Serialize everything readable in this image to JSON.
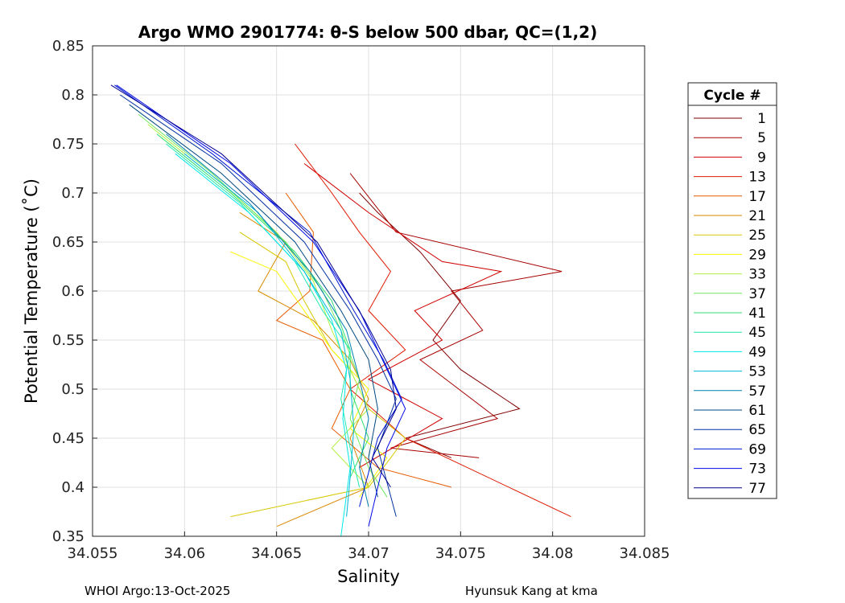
{
  "chart_data": {
    "type": "line",
    "title": "Argo WMO 2901774: θ-S below 500 dbar,  QC=(1,2)",
    "xlabel": "Salinity",
    "ylabel": "Potential Temperature (˚C)",
    "xlim": [
      34.055,
      34.085
    ],
    "ylim": [
      0.35,
      0.85
    ],
    "xticks": [
      "34.055",
      "34.06",
      "34.065",
      "34.07",
      "34.075",
      "34.08",
      "34.085"
    ],
    "yticks": [
      "0.35",
      "0.4",
      "0.45",
      "0.5",
      "0.55",
      "0.6",
      "0.65",
      "0.7",
      "0.75",
      "0.8",
      "0.85"
    ],
    "grid": true,
    "legend": {
      "title": "Cycle #",
      "position": "right-outside",
      "entries": [
        {
          "label": "1",
          "color": "#800000"
        },
        {
          "label": "5",
          "color": "#a80000"
        },
        {
          "label": "9",
          "color": "#d00000"
        },
        {
          "label": "13",
          "color": "#e01800"
        },
        {
          "label": "17",
          "color": "#e85a00"
        },
        {
          "label": "21",
          "color": "#d88a00"
        },
        {
          "label": "25",
          "color": "#d8c800"
        },
        {
          "label": "29",
          "color": "#f8f800"
        },
        {
          "label": "33",
          "color": "#b0f040"
        },
        {
          "label": "37",
          "color": "#70e860"
        },
        {
          "label": "41",
          "color": "#30e070"
        },
        {
          "label": "45",
          "color": "#20e8b0"
        },
        {
          "label": "49",
          "color": "#00e8e8"
        },
        {
          "label": "53",
          "color": "#00b8d8"
        },
        {
          "label": "57",
          "color": "#0080b0"
        },
        {
          "label": "61",
          "color": "#004880"
        },
        {
          "label": "65",
          "color": "#0030a0"
        },
        {
          "label": "69",
          "color": "#0018d0"
        },
        {
          "label": "73",
          "color": "#0008e8"
        },
        {
          "label": "77",
          "color": "#000090"
        }
      ]
    },
    "series": [
      {
        "name": "1",
        "points": [
          [
            34.0695,
            0.7
          ],
          [
            34.0705,
            0.68
          ],
          [
            34.0728,
            0.64
          ],
          [
            34.075,
            0.59
          ],
          [
            34.0735,
            0.55
          ],
          [
            34.075,
            0.52
          ],
          [
            34.0782,
            0.48
          ],
          [
            34.072,
            0.45
          ],
          [
            34.0745,
            0.43
          ]
        ]
      },
      {
        "name": "5",
        "points": [
          [
            34.069,
            0.72
          ],
          [
            34.0715,
            0.66
          ],
          [
            34.0805,
            0.62
          ],
          [
            34.0745,
            0.6
          ],
          [
            34.0762,
            0.56
          ],
          [
            34.0728,
            0.53
          ],
          [
            34.077,
            0.47
          ],
          [
            34.0712,
            0.44
          ],
          [
            34.076,
            0.43
          ]
        ]
      },
      {
        "name": "9",
        "points": [
          [
            34.0665,
            0.73
          ],
          [
            34.07,
            0.68
          ],
          [
            34.074,
            0.63
          ],
          [
            34.0772,
            0.62
          ],
          [
            34.0725,
            0.58
          ],
          [
            34.074,
            0.55
          ],
          [
            34.07,
            0.51
          ],
          [
            34.074,
            0.47
          ],
          [
            34.0695,
            0.42
          ]
        ]
      },
      {
        "name": "13",
        "points": [
          [
            34.066,
            0.75
          ],
          [
            34.068,
            0.7
          ],
          [
            34.0695,
            0.66
          ],
          [
            34.0712,
            0.62
          ],
          [
            34.07,
            0.58
          ],
          [
            34.072,
            0.54
          ],
          [
            34.069,
            0.5
          ],
          [
            34.072,
            0.45
          ],
          [
            34.081,
            0.37
          ]
        ]
      },
      {
        "name": "17",
        "points": [
          [
            34.0655,
            0.7
          ],
          [
            34.067,
            0.66
          ],
          [
            34.0668,
            0.6
          ],
          [
            34.065,
            0.57
          ],
          [
            34.0675,
            0.55
          ],
          [
            34.069,
            0.5
          ],
          [
            34.068,
            0.46
          ],
          [
            34.0705,
            0.42
          ],
          [
            34.0745,
            0.4
          ]
        ]
      },
      {
        "name": "21",
        "points": [
          [
            34.063,
            0.68
          ],
          [
            34.0655,
            0.65
          ],
          [
            34.064,
            0.6
          ],
          [
            34.067,
            0.57
          ],
          [
            34.069,
            0.53
          ],
          [
            34.07,
            0.49
          ],
          [
            34.069,
            0.45
          ],
          [
            34.07,
            0.4
          ],
          [
            34.065,
            0.36
          ]
        ]
      },
      {
        "name": "25",
        "points": [
          [
            34.063,
            0.66
          ],
          [
            34.0655,
            0.63
          ],
          [
            34.0665,
            0.59
          ],
          [
            34.068,
            0.54
          ],
          [
            34.069,
            0.52
          ],
          [
            34.07,
            0.48
          ],
          [
            34.072,
            0.45
          ],
          [
            34.07,
            0.4
          ],
          [
            34.0625,
            0.37
          ]
        ]
      },
      {
        "name": "29",
        "points": [
          [
            34.0625,
            0.64
          ],
          [
            34.065,
            0.62
          ],
          [
            34.0665,
            0.58
          ],
          [
            34.068,
            0.54
          ],
          [
            34.07,
            0.5
          ],
          [
            34.069,
            0.46
          ],
          [
            34.071,
            0.43
          ],
          [
            34.0695,
            0.39
          ]
        ]
      },
      {
        "name": "33",
        "points": [
          [
            34.058,
            0.77
          ],
          [
            34.062,
            0.71
          ],
          [
            34.065,
            0.66
          ],
          [
            34.067,
            0.61
          ],
          [
            34.068,
            0.56
          ],
          [
            34.069,
            0.52
          ],
          [
            34.07,
            0.48
          ],
          [
            34.068,
            0.44
          ],
          [
            34.07,
            0.4
          ]
        ]
      },
      {
        "name": "37",
        "points": [
          [
            34.0575,
            0.78
          ],
          [
            34.0615,
            0.72
          ],
          [
            34.0655,
            0.65
          ],
          [
            34.0675,
            0.6
          ],
          [
            34.0685,
            0.56
          ],
          [
            34.0695,
            0.51
          ],
          [
            34.069,
            0.47
          ],
          [
            34.07,
            0.42
          ],
          [
            34.071,
            0.39
          ]
        ]
      },
      {
        "name": "41",
        "points": [
          [
            34.0585,
            0.76
          ],
          [
            34.0625,
            0.7
          ],
          [
            34.066,
            0.64
          ],
          [
            34.068,
            0.59
          ],
          [
            34.069,
            0.54
          ],
          [
            34.069,
            0.5
          ],
          [
            34.07,
            0.45
          ],
          [
            34.069,
            0.41
          ]
        ]
      },
      {
        "name": "45",
        "points": [
          [
            34.059,
            0.75
          ],
          [
            34.063,
            0.69
          ],
          [
            34.066,
            0.63
          ],
          [
            34.0675,
            0.58
          ],
          [
            34.069,
            0.54
          ],
          [
            34.0685,
            0.49
          ],
          [
            34.069,
            0.44
          ],
          [
            34.0695,
            0.4
          ]
        ]
      },
      {
        "name": "49",
        "points": [
          [
            34.0595,
            0.74
          ],
          [
            34.0635,
            0.68
          ],
          [
            34.0665,
            0.62
          ],
          [
            34.068,
            0.57
          ],
          [
            34.0688,
            0.52
          ],
          [
            34.0686,
            0.47
          ],
          [
            34.069,
            0.42
          ],
          [
            34.0685,
            0.35
          ]
        ]
      },
      {
        "name": "53",
        "points": [
          [
            34.06,
            0.74
          ],
          [
            34.064,
            0.68
          ],
          [
            34.0665,
            0.62
          ],
          [
            34.0685,
            0.56
          ],
          [
            34.069,
            0.51
          ],
          [
            34.0692,
            0.46
          ],
          [
            34.069,
            0.41
          ],
          [
            34.0688,
            0.37
          ]
        ]
      },
      {
        "name": "57",
        "points": [
          [
            34.059,
            0.76
          ],
          [
            34.0635,
            0.69
          ],
          [
            34.0668,
            0.62
          ],
          [
            34.0688,
            0.56
          ],
          [
            34.0695,
            0.51
          ],
          [
            34.07,
            0.47
          ],
          [
            34.0695,
            0.42
          ],
          [
            34.07,
            0.38
          ]
        ]
      },
      {
        "name": "61",
        "points": [
          [
            34.057,
            0.79
          ],
          [
            34.062,
            0.72
          ],
          [
            34.066,
            0.65
          ],
          [
            34.0685,
            0.58
          ],
          [
            34.07,
            0.53
          ],
          [
            34.0705,
            0.48
          ],
          [
            34.07,
            0.43
          ],
          [
            34.0705,
            0.39
          ]
        ]
      },
      {
        "name": "65",
        "points": [
          [
            34.0565,
            0.8
          ],
          [
            34.062,
            0.73
          ],
          [
            34.0665,
            0.65
          ],
          [
            34.069,
            0.58
          ],
          [
            34.0705,
            0.53
          ],
          [
            34.0715,
            0.49
          ],
          [
            34.0705,
            0.44
          ],
          [
            34.0715,
            0.37
          ]
        ]
      },
      {
        "name": "69",
        "points": [
          [
            34.0562,
            0.81
          ],
          [
            34.0615,
            0.74
          ],
          [
            34.0668,
            0.66
          ],
          [
            34.0692,
            0.58
          ],
          [
            34.0708,
            0.53
          ],
          [
            34.0718,
            0.49
          ],
          [
            34.0705,
            0.45
          ],
          [
            34.0695,
            0.38
          ]
        ]
      },
      {
        "name": "73",
        "points": [
          [
            34.0563,
            0.81
          ],
          [
            34.0625,
            0.73
          ],
          [
            34.067,
            0.65
          ],
          [
            34.0695,
            0.58
          ],
          [
            34.071,
            0.52
          ],
          [
            34.072,
            0.48
          ],
          [
            34.071,
            0.44
          ],
          [
            34.07,
            0.36
          ]
        ]
      },
      {
        "name": "77",
        "points": [
          [
            34.056,
            0.81
          ],
          [
            34.062,
            0.74
          ],
          [
            34.0672,
            0.65
          ],
          [
            34.0698,
            0.57
          ],
          [
            34.0712,
            0.52
          ],
          [
            34.0715,
            0.48
          ],
          [
            34.0702,
            0.43
          ],
          [
            34.0712,
            0.4
          ]
        ]
      }
    ]
  },
  "footer": {
    "left": "WHOI Argo:13-Oct-2025",
    "right": "Hyunsuk Kang at kma"
  }
}
